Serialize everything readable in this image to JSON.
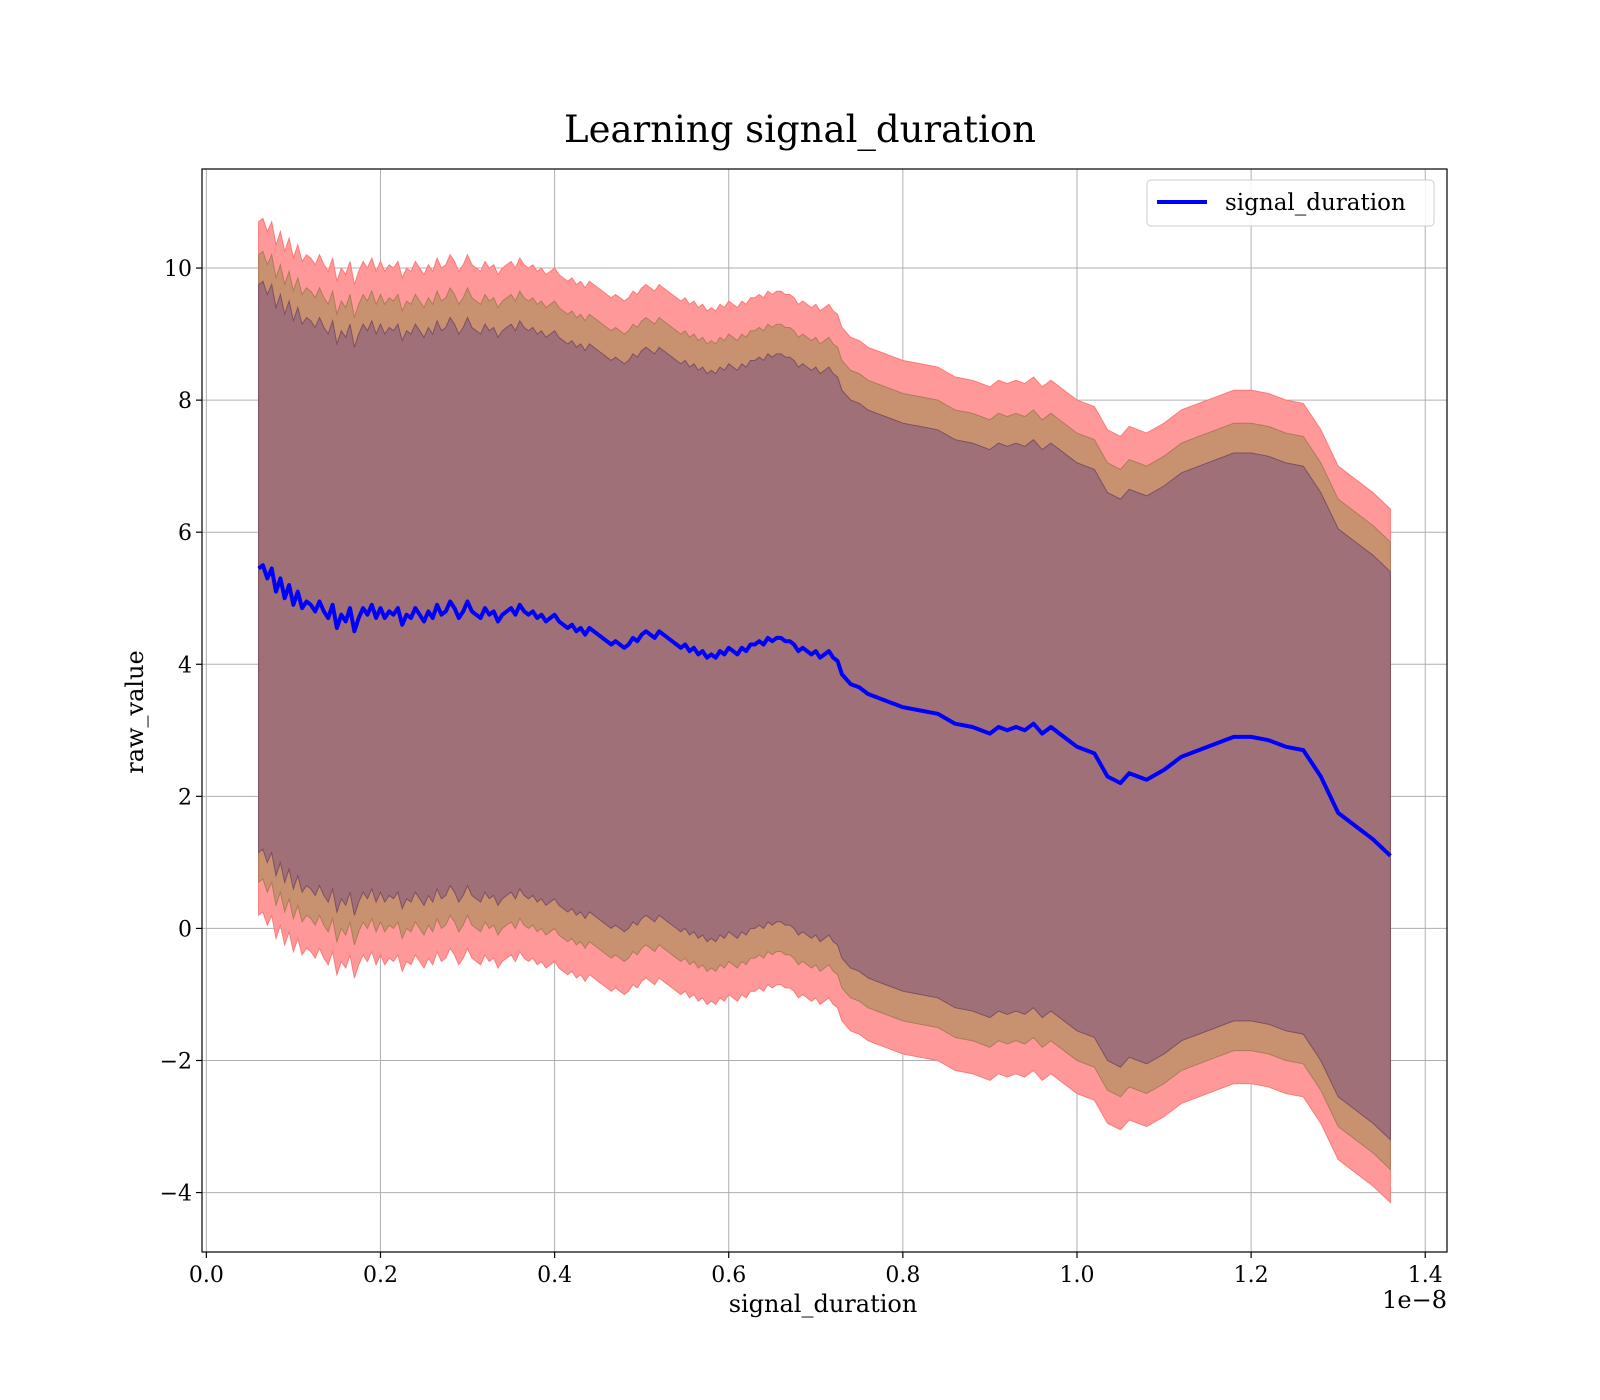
{
  "chart_data": {
    "type": "line",
    "title": "Learning signal_duration",
    "xlabel": "signal_duration",
    "ylabel": "raw_value",
    "x_offset_label": "1e−8",
    "xlim": [
      -0.005,
      1.425
    ],
    "ylim": [
      -4.9,
      11.5
    ],
    "x_ticks": [
      0.0,
      0.2,
      0.4,
      0.6,
      0.8,
      1.0,
      1.2,
      1.4
    ],
    "x_tick_labels": [
      "0.0",
      "0.2",
      "0.4",
      "0.6",
      "0.8",
      "1.0",
      "1.2",
      "1.4"
    ],
    "y_ticks": [
      -4,
      -2,
      0,
      2,
      4,
      6,
      8,
      10
    ],
    "y_tick_labels": [
      "−4",
      "−2",
      "0",
      "2",
      "4",
      "6",
      "8",
      "10"
    ],
    "grid": true,
    "legend": {
      "position": "top-right",
      "entries": [
        "signal_duration"
      ]
    },
    "colors": {
      "line": "#0000ff",
      "band_outer": "#ff9999",
      "band_middle": "#c8916f",
      "band_inner": "#a07078"
    },
    "band_half_widths": {
      "inner": 4.3,
      "middle": 4.75,
      "outer": 5.25
    },
    "series": [
      {
        "name": "signal_duration",
        "x": [
          0.06,
          0.065,
          0.07,
          0.075,
          0.08,
          0.085,
          0.09,
          0.095,
          0.1,
          0.105,
          0.11,
          0.115,
          0.12,
          0.125,
          0.13,
          0.135,
          0.14,
          0.145,
          0.15,
          0.155,
          0.16,
          0.165,
          0.17,
          0.175,
          0.18,
          0.185,
          0.19,
          0.195,
          0.2,
          0.205,
          0.21,
          0.215,
          0.22,
          0.225,
          0.23,
          0.235,
          0.24,
          0.245,
          0.25,
          0.255,
          0.26,
          0.265,
          0.27,
          0.275,
          0.28,
          0.285,
          0.29,
          0.295,
          0.3,
          0.305,
          0.31,
          0.315,
          0.32,
          0.325,
          0.33,
          0.335,
          0.34,
          0.345,
          0.35,
          0.355,
          0.36,
          0.365,
          0.37,
          0.375,
          0.38,
          0.385,
          0.39,
          0.395,
          0.4,
          0.405,
          0.41,
          0.415,
          0.42,
          0.425,
          0.43,
          0.435,
          0.44,
          0.445,
          0.45,
          0.455,
          0.46,
          0.465,
          0.47,
          0.475,
          0.48,
          0.485,
          0.49,
          0.495,
          0.5,
          0.505,
          0.51,
          0.515,
          0.52,
          0.525,
          0.53,
          0.535,
          0.54,
          0.545,
          0.55,
          0.555,
          0.56,
          0.565,
          0.57,
          0.575,
          0.58,
          0.585,
          0.59,
          0.595,
          0.6,
          0.605,
          0.61,
          0.615,
          0.62,
          0.625,
          0.63,
          0.635,
          0.64,
          0.645,
          0.65,
          0.655,
          0.66,
          0.665,
          0.67,
          0.675,
          0.68,
          0.685,
          0.69,
          0.695,
          0.7,
          0.705,
          0.71,
          0.715,
          0.72,
          0.725,
          0.73,
          0.74,
          0.75,
          0.76,
          0.77,
          0.78,
          0.79,
          0.8,
          0.82,
          0.84,
          0.86,
          0.88,
          0.9,
          0.91,
          0.92,
          0.93,
          0.94,
          0.95,
          0.96,
          0.97,
          0.98,
          1.0,
          1.02,
          1.035,
          1.05,
          1.06,
          1.08,
          1.1,
          1.12,
          1.14,
          1.16,
          1.18,
          1.2,
          1.22,
          1.24,
          1.26,
          1.28,
          1.3,
          1.32,
          1.34,
          1.36
        ],
        "y": [
          5.45,
          5.5,
          5.3,
          5.45,
          5.1,
          5.3,
          5.0,
          5.2,
          4.9,
          5.1,
          4.85,
          4.95,
          4.9,
          4.8,
          4.95,
          4.8,
          4.7,
          4.9,
          4.55,
          4.75,
          4.65,
          4.85,
          4.5,
          4.7,
          4.85,
          4.75,
          4.9,
          4.7,
          4.85,
          4.7,
          4.8,
          4.75,
          4.85,
          4.6,
          4.75,
          4.7,
          4.85,
          4.75,
          4.65,
          4.8,
          4.7,
          4.9,
          4.75,
          4.8,
          4.95,
          4.85,
          4.7,
          4.8,
          4.95,
          4.8,
          4.75,
          4.7,
          4.85,
          4.75,
          4.8,
          4.65,
          4.75,
          4.8,
          4.85,
          4.75,
          4.9,
          4.8,
          4.75,
          4.8,
          4.7,
          4.75,
          4.65,
          4.7,
          4.75,
          4.65,
          4.6,
          4.55,
          4.6,
          4.5,
          4.55,
          4.45,
          4.55,
          4.5,
          4.45,
          4.4,
          4.35,
          4.3,
          4.35,
          4.3,
          4.25,
          4.3,
          4.4,
          4.35,
          4.45,
          4.5,
          4.45,
          4.4,
          4.5,
          4.45,
          4.4,
          4.35,
          4.3,
          4.25,
          4.3,
          4.2,
          4.25,
          4.15,
          4.2,
          4.1,
          4.15,
          4.1,
          4.2,
          4.15,
          4.25,
          4.2,
          4.15,
          4.25,
          4.2,
          4.3,
          4.3,
          4.35,
          4.3,
          4.4,
          4.35,
          4.4,
          4.4,
          4.35,
          4.35,
          4.3,
          4.2,
          4.25,
          4.2,
          4.15,
          4.2,
          4.1,
          4.15,
          4.2,
          4.1,
          4.05,
          3.85,
          3.7,
          3.65,
          3.55,
          3.5,
          3.45,
          3.4,
          3.35,
          3.3,
          3.25,
          3.1,
          3.05,
          2.95,
          3.05,
          3.0,
          3.05,
          3.0,
          3.1,
          2.95,
          3.05,
          2.95,
          2.75,
          2.65,
          2.3,
          2.2,
          2.35,
          2.25,
          2.4,
          2.6,
          2.7,
          2.8,
          2.9,
          2.9,
          2.85,
          2.75,
          2.7,
          2.3,
          1.75,
          1.55,
          1.35,
          1.1
        ]
      }
    ]
  }
}
